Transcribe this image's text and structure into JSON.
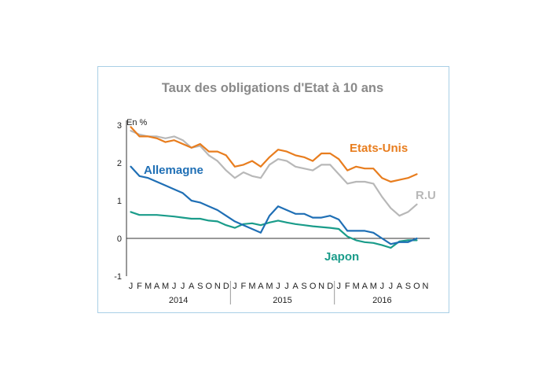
{
  "chart_data": {
    "type": "line",
    "title": "Taux des obligations d'Etat à 10 ans",
    "unit_label": "En %",
    "ylim": [
      -1,
      3
    ],
    "yticks": [
      "3",
      "2",
      "1",
      "0",
      "-1"
    ],
    "x_start": "2014-01",
    "x_end": "2016-11",
    "month_labels": [
      "J",
      "F",
      "M",
      "A",
      "M",
      "J",
      "J",
      "A",
      "S",
      "O",
      "N",
      "D",
      "J",
      "F",
      "M",
      "A",
      "M",
      "J",
      "J",
      "A",
      "S",
      "O",
      "N",
      "D",
      "J",
      "F",
      "M",
      "A",
      "M",
      "J",
      "J",
      "A",
      "S",
      "O",
      "N"
    ],
    "years": [
      "2014",
      "2015",
      "2016"
    ],
    "grid": false,
    "colors": {
      "Etats-Unis": "#e87d1e",
      "R.U": "#b8b8b8",
      "Allemagne": "#1f6fb5",
      "Japon": "#1a9c8a"
    },
    "series": [
      {
        "name": "Etats-Unis",
        "x": [
          "2014-01",
          "2014-02",
          "2014-03",
          "2014-04",
          "2014-05",
          "2014-06",
          "2014-07",
          "2014-08",
          "2014-09",
          "2014-10",
          "2014-11",
          "2014-12",
          "2015-01",
          "2015-02",
          "2015-03",
          "2015-04",
          "2015-05",
          "2015-06",
          "2015-07",
          "2015-08",
          "2015-09",
          "2015-10",
          "2015-11",
          "2015-12",
          "2016-01",
          "2016-02",
          "2016-03",
          "2016-04",
          "2016-05",
          "2016-06",
          "2016-07",
          "2016-08",
          "2016-09",
          "2016-10"
        ],
        "values": [
          2.95,
          2.7,
          2.7,
          2.65,
          2.55,
          2.6,
          2.5,
          2.4,
          2.5,
          2.3,
          2.3,
          2.2,
          1.9,
          1.95,
          2.05,
          1.9,
          2.15,
          2.35,
          2.3,
          2.2,
          2.15,
          2.05,
          2.25,
          2.25,
          2.1,
          1.8,
          1.9,
          1.85,
          1.85,
          1.6,
          1.5,
          1.55,
          1.6,
          1.7
        ]
      },
      {
        "name": "R.U",
        "x": [
          "2014-01",
          "2014-02",
          "2014-03",
          "2014-04",
          "2014-05",
          "2014-06",
          "2014-07",
          "2014-08",
          "2014-09",
          "2014-10",
          "2014-11",
          "2014-12",
          "2015-01",
          "2015-02",
          "2015-03",
          "2015-04",
          "2015-05",
          "2015-06",
          "2015-07",
          "2015-08",
          "2015-09",
          "2015-10",
          "2015-11",
          "2015-12",
          "2016-01",
          "2016-02",
          "2016-03",
          "2016-04",
          "2016-05",
          "2016-06",
          "2016-07",
          "2016-08",
          "2016-09",
          "2016-10"
        ],
        "values": [
          2.85,
          2.75,
          2.7,
          2.7,
          2.65,
          2.7,
          2.6,
          2.4,
          2.45,
          2.2,
          2.05,
          1.8,
          1.6,
          1.75,
          1.65,
          1.6,
          1.95,
          2.1,
          2.05,
          1.9,
          1.85,
          1.8,
          1.95,
          1.95,
          1.7,
          1.45,
          1.5,
          1.5,
          1.45,
          1.1,
          0.8,
          0.6,
          0.7,
          0.9
        ]
      },
      {
        "name": "Allemagne",
        "x": [
          "2014-01",
          "2014-02",
          "2014-03",
          "2014-04",
          "2014-05",
          "2014-06",
          "2014-07",
          "2014-08",
          "2014-09",
          "2014-10",
          "2014-11",
          "2014-12",
          "2015-01",
          "2015-02",
          "2015-03",
          "2015-04",
          "2015-05",
          "2015-06",
          "2015-07",
          "2015-08",
          "2015-09",
          "2015-10",
          "2015-11",
          "2015-12",
          "2016-01",
          "2016-02",
          "2016-03",
          "2016-04",
          "2016-05",
          "2016-06",
          "2016-07",
          "2016-08",
          "2016-09",
          "2016-10"
        ],
        "values": [
          1.9,
          1.65,
          1.6,
          1.5,
          1.4,
          1.3,
          1.2,
          1.0,
          0.95,
          0.85,
          0.75,
          0.6,
          0.45,
          0.35,
          0.25,
          0.15,
          0.6,
          0.85,
          0.75,
          0.65,
          0.65,
          0.55,
          0.55,
          0.6,
          0.5,
          0.2,
          0.2,
          0.2,
          0.15,
          0.0,
          -0.15,
          -0.1,
          -0.1,
          0.0
        ]
      },
      {
        "name": "Japon",
        "x": [
          "2014-01",
          "2014-02",
          "2014-03",
          "2014-04",
          "2014-05",
          "2014-06",
          "2014-07",
          "2014-08",
          "2014-09",
          "2014-10",
          "2014-11",
          "2014-12",
          "2015-01",
          "2015-02",
          "2015-03",
          "2015-04",
          "2015-05",
          "2015-06",
          "2015-07",
          "2015-08",
          "2015-09",
          "2015-10",
          "2015-11",
          "2015-12",
          "2016-01",
          "2016-02",
          "2016-03",
          "2016-04",
          "2016-05",
          "2016-06",
          "2016-07",
          "2016-08",
          "2016-09",
          "2016-10"
        ],
        "values": [
          0.7,
          0.62,
          0.62,
          0.62,
          0.6,
          0.58,
          0.55,
          0.52,
          0.52,
          0.47,
          0.45,
          0.35,
          0.28,
          0.38,
          0.4,
          0.35,
          0.42,
          0.47,
          0.42,
          0.38,
          0.35,
          0.32,
          0.3,
          0.28,
          0.25,
          0.05,
          -0.05,
          -0.1,
          -0.12,
          -0.18,
          -0.25,
          -0.08,
          -0.05,
          -0.05
        ]
      }
    ]
  }
}
